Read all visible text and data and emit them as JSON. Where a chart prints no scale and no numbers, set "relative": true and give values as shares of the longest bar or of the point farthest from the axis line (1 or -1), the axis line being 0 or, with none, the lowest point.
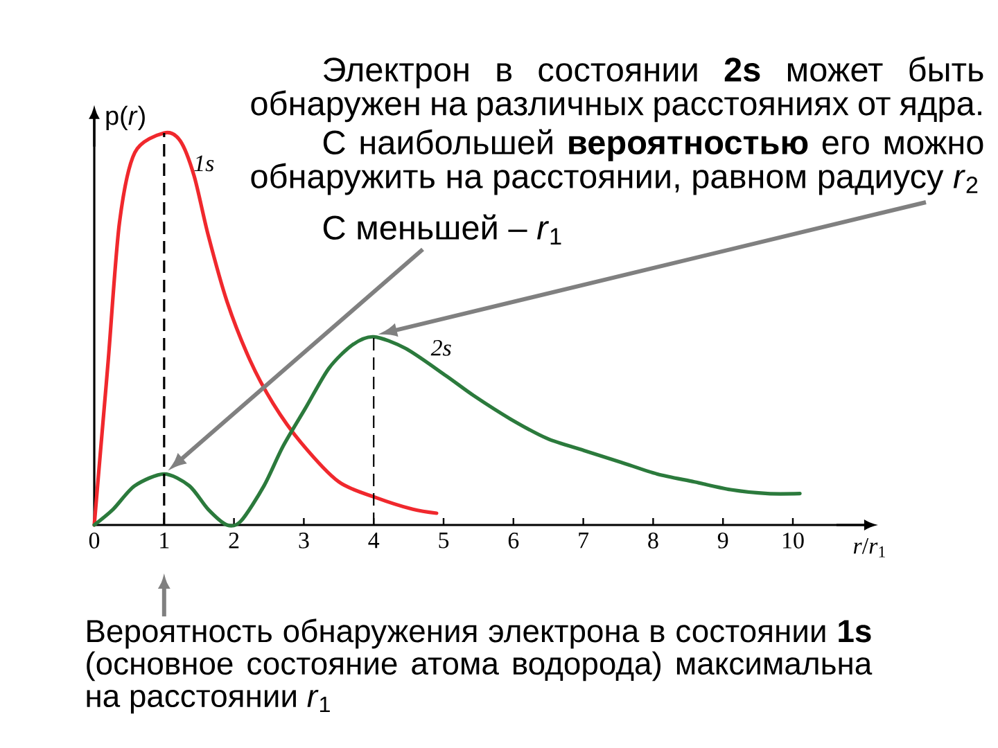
{
  "chart_data": {
    "type": "line",
    "relative": true,
    "xlabel": "*r*/*r*$_{1}$",
    "ylabel": "p(*r*)",
    "xlim": [
      0,
      11.1
    ],
    "xticks": [
      0,
      1,
      2,
      3,
      4,
      5,
      6,
      7,
      8,
      9,
      10
    ],
    "series": [
      {
        "name": "1s",
        "color": "#f0282d",
        "x": [
          0,
          0.09,
          0.2,
          0.36,
          0.58,
          1,
          1.23,
          1.43,
          1.63,
          1.9,
          2.23,
          2.56,
          2.96,
          3.5,
          4.03,
          4.56,
          4.9
        ],
        "values": [
          0,
          0.19,
          0.42,
          0.77,
          0.95,
          1,
          0.98,
          0.89,
          0.74,
          0.57,
          0.42,
          0.31,
          0.21,
          0.11,
          0.07,
          0.04,
          0.03
        ]
      },
      {
        "name": "2s",
        "color": "#2b7a3c",
        "x": [
          0,
          0.27,
          0.58,
          1,
          1.36,
          1.63,
          1.9,
          2.1,
          2.43,
          2.7,
          3.03,
          3.36,
          3.7,
          4,
          4.46,
          5.04,
          5.43,
          5.96,
          6.49,
          7.01,
          7.54,
          8.06,
          8.59,
          9.11,
          9.64,
          10.1
        ],
        "values": [
          0,
          0.04,
          0.1,
          0.13,
          0.1,
          0.04,
          0,
          0.01,
          0.1,
          0.2,
          0.3,
          0.4,
          0.46,
          0.48,
          0.45,
          0.38,
          0.33,
          0.27,
          0.22,
          0.19,
          0.16,
          0.13,
          0.11,
          0.09,
          0.08,
          0.08
        ]
      }
    ],
    "ref_lines": [
      {
        "axis": "x",
        "value": 1,
        "color": "#000000",
        "line_style": "dashed"
      },
      {
        "axis": "x",
        "value": 4,
        "color": "#000000",
        "line_style": "dashed"
      }
    ],
    "annotations": [
      "Электрон в состоянии **2s** может быть обнаружен на различных расстояниях от ядра.",
      "С наибольшей **вероятностью** его можно обнаружить на расстоянии, равном радиусу *r*$_{2}$",
      "С меньшей – *r*$_{1}$",
      "Вероятность обнаружения электрона в состоянии **1s** (основное состояние атома водорода) максимальна на расстоянии *r*$_{1}$"
    ]
  }
}
